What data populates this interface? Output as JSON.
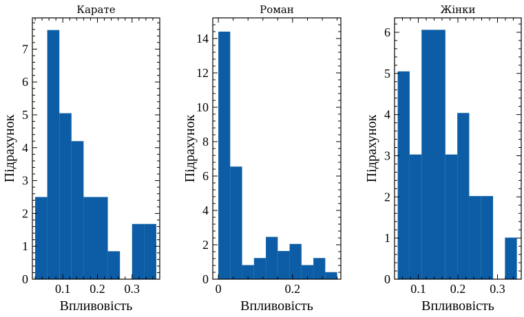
{
  "colors": {
    "bar": "#0c5da5",
    "axis": "#000000",
    "background": "#ffffff"
  },
  "chart_data": [
    {
      "type": "bar",
      "title": "Карате",
      "xlabel": "Впливовість",
      "ylabel": "Підрахунок",
      "xlim": [
        0.012,
        0.38
      ],
      "ylim": [
        0,
        7.95
      ],
      "xticks": [
        0.1,
        0.2,
        0.3
      ],
      "yticks": [
        0,
        1,
        2,
        3,
        4,
        5,
        6,
        7
      ],
      "bins": [
        {
          "x0": 0.02,
          "x1": 0.055,
          "count": 2.5
        },
        {
          "x0": 0.055,
          "x1": 0.09,
          "count": 7.58
        },
        {
          "x0": 0.09,
          "x1": 0.125,
          "count": 5.05
        },
        {
          "x0": 0.125,
          "x1": 0.16,
          "count": 4.2
        },
        {
          "x0": 0.16,
          "x1": 0.195,
          "count": 2.5
        },
        {
          "x0": 0.195,
          "x1": 0.23,
          "count": 2.5
        },
        {
          "x0": 0.23,
          "x1": 0.265,
          "count": 0.85
        },
        {
          "x0": 0.265,
          "x1": 0.3,
          "count": 0
        },
        {
          "x0": 0.3,
          "x1": 0.335,
          "count": 1.68
        },
        {
          "x0": 0.335,
          "x1": 0.37,
          "count": 1.68
        }
      ]
    },
    {
      "type": "bar",
      "title": "Роман",
      "xlabel": "Впливовість",
      "ylabel": "Підрахунок",
      "xlim": [
        -0.015,
        0.33
      ],
      "ylim": [
        0,
        15.2
      ],
      "xticks": [
        0.0,
        0.2
      ],
      "yticks": [
        0,
        2,
        4,
        6,
        8,
        10,
        12,
        14
      ],
      "bins": [
        {
          "x0": 0.0,
          "x1": 0.032,
          "count": 14.4
        },
        {
          "x0": 0.032,
          "x1": 0.064,
          "count": 6.55
        },
        {
          "x0": 0.064,
          "x1": 0.096,
          "count": 0.82
        },
        {
          "x0": 0.096,
          "x1": 0.128,
          "count": 1.23
        },
        {
          "x0": 0.128,
          "x1": 0.16,
          "count": 2.46
        },
        {
          "x0": 0.16,
          "x1": 0.192,
          "count": 1.64
        },
        {
          "x0": 0.192,
          "x1": 0.224,
          "count": 2.05
        },
        {
          "x0": 0.224,
          "x1": 0.256,
          "count": 0.82
        },
        {
          "x0": 0.256,
          "x1": 0.288,
          "count": 1.23
        },
        {
          "x0": 0.288,
          "x1": 0.32,
          "count": 0.41
        }
      ]
    },
    {
      "type": "bar",
      "title": "Жінки",
      "xlabel": "Впливовість",
      "ylabel": "Підрахунок",
      "xlim": [
        0.04,
        0.36
      ],
      "ylim": [
        0,
        6.35
      ],
      "xticks": [
        0.1,
        0.2,
        0.3
      ],
      "yticks": [
        0,
        1,
        2,
        3,
        4,
        5,
        6
      ],
      "bins": [
        {
          "x0": 0.048,
          "x1": 0.0781,
          "count": 5.05
        },
        {
          "x0": 0.0781,
          "x1": 0.1082,
          "count": 3.03
        },
        {
          "x0": 0.1082,
          "x1": 0.1383,
          "count": 6.06
        },
        {
          "x0": 0.1383,
          "x1": 0.1684,
          "count": 6.06
        },
        {
          "x0": 0.1684,
          "x1": 0.1985,
          "count": 3.03
        },
        {
          "x0": 0.1985,
          "x1": 0.2286,
          "count": 4.04
        },
        {
          "x0": 0.2286,
          "x1": 0.2587,
          "count": 2.02
        },
        {
          "x0": 0.2587,
          "x1": 0.2888,
          "count": 2.02
        },
        {
          "x0": 0.2888,
          "x1": 0.3189,
          "count": 0
        },
        {
          "x0": 0.3189,
          "x1": 0.349,
          "count": 1.01
        }
      ]
    }
  ]
}
